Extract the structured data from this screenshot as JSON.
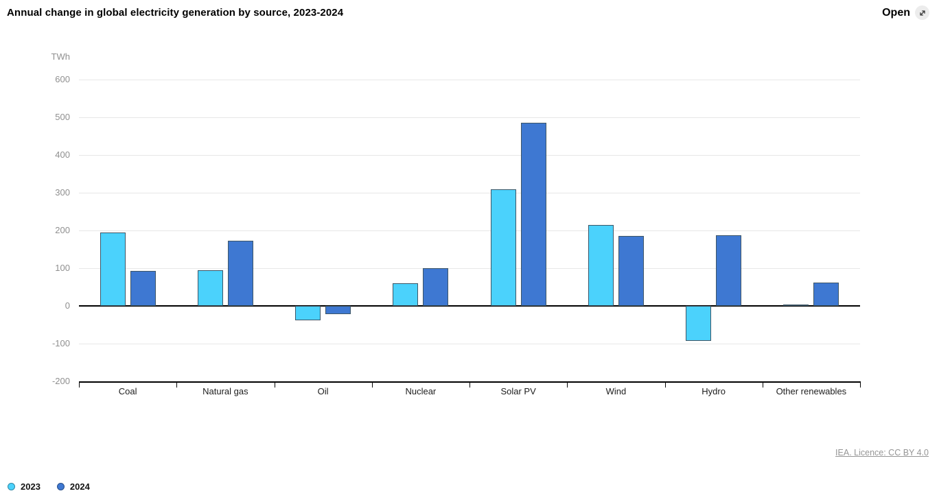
{
  "header": {
    "title": "Annual change in global electricity generation by source, 2023-2024",
    "open_label": "Open"
  },
  "footer": {
    "license_text": "IEA. Licence: CC BY 4.0"
  },
  "icons": {
    "open_icon": "expand-diagonal-arrows"
  },
  "chart_data": {
    "type": "bar",
    "title": "Annual change in global electricity generation by source, 2023-2024",
    "unit_label": "TWh",
    "xlabel": "",
    "ylabel": "TWh",
    "categories": [
      "Coal",
      "Natural gas",
      "Oil",
      "Nuclear",
      "Solar PV",
      "Wind",
      "Hydro",
      "Other renewables"
    ],
    "series": [
      {
        "name": "2023",
        "color": "#4BD2FC",
        "values": [
          195,
          95,
          -38,
          60,
          310,
          215,
          -93,
          3
        ]
      },
      {
        "name": "2024",
        "color": "#3E78D2",
        "values": [
          92,
          173,
          -22,
          100,
          485,
          186,
          188,
          62
        ]
      }
    ],
    "ylim": [
      -200,
      600
    ],
    "yticks": [
      600,
      500,
      400,
      300,
      200,
      100,
      0,
      -100,
      -200
    ],
    "grid": true,
    "bar_border_color": "#3d5565",
    "gridline_color": "#e7e7e7",
    "legend_position": "bottom-left"
  }
}
